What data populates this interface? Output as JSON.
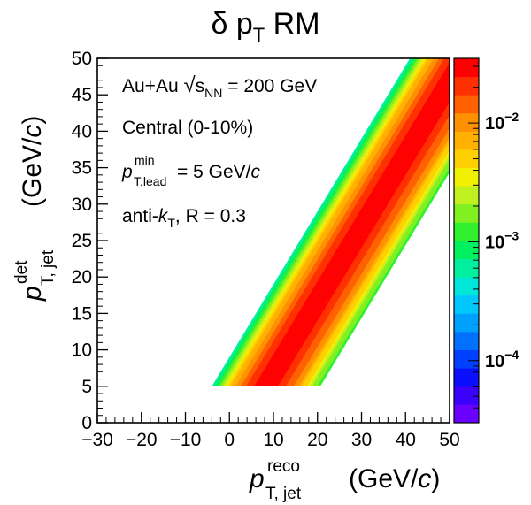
{
  "chart_data": {
    "type": "heatmap",
    "title": {
      "main": "δ p",
      "sub": "T",
      "tail": " RM"
    },
    "xlabel": {
      "main": "p",
      "sup": "reco",
      "sub": "T, jet",
      "unit": "(GeV/",
      "unit_italic": "c",
      "unit_close": ")"
    },
    "ylabel": {
      "main": "p",
      "sup": "det",
      "sub": "T, jet",
      "unit": "(GeV/",
      "unit_italic": "c",
      "unit_close": ")"
    },
    "xlim": [
      -30,
      50
    ],
    "ylim": [
      0,
      50
    ],
    "xticks": [
      -30,
      -20,
      -10,
      0,
      10,
      20,
      30,
      40,
      50
    ],
    "xtick_labels": [
      "−30",
      "−20",
      "−10",
      "0",
      "10",
      "20",
      "30",
      "40",
      "50"
    ],
    "yticks": [
      0,
      5,
      10,
      15,
      20,
      25,
      30,
      35,
      40,
      45,
      50
    ],
    "ytick_labels": [
      "0",
      "5",
      "10",
      "15",
      "20",
      "25",
      "30",
      "35",
      "40",
      "45",
      "50"
    ],
    "colorbar": {
      "scale": "log",
      "range": [
        3e-05,
        0.035
      ],
      "tick_labels": [
        {
          "base": "10",
          "exp": "−2",
          "value": 0.01
        },
        {
          "base": "10",
          "exp": "−3",
          "value": 0.001
        },
        {
          "base": "10",
          "exp": "−4",
          "value": 0.0001
        }
      ]
    },
    "annotations": {
      "line1": {
        "text": "Au+Au ",
        "sqrt_sym": "√",
        "s": "s",
        "nn": "NN",
        "rest": " = 200 GeV"
      },
      "line2": "Central (0-10%)",
      "line3": {
        "p": "p",
        "sup": "min",
        "sub": "T,lead",
        "rest": " = 5 GeV/",
        "c": "c"
      },
      "line4": {
        "pre": "anti-",
        "k": "k",
        "sub": "T",
        "rest": ", R = 0.3"
      }
    },
    "distribution": {
      "description_x": "reco = det + delta_pt",
      "det_min": 5,
      "det_max": 50,
      "delta_pt_peak": 3,
      "delta_pt_range": [
        -9,
        15
      ],
      "sigma_left": 4.2,
      "sigma_right": 4.8
    },
    "palette": [
      "#6a00ff",
      "#3c00ff",
      "#0a10ff",
      "#0040ff",
      "#0070ff",
      "#00a0ff",
      "#00c8ff",
      "#00e6d8",
      "#00f0a0",
      "#00f060",
      "#30f030",
      "#80f020",
      "#c0f020",
      "#f0f000",
      "#ffd000",
      "#ffb000",
      "#ff9000",
      "#ff6000",
      "#ff3000",
      "#ff0000"
    ]
  }
}
